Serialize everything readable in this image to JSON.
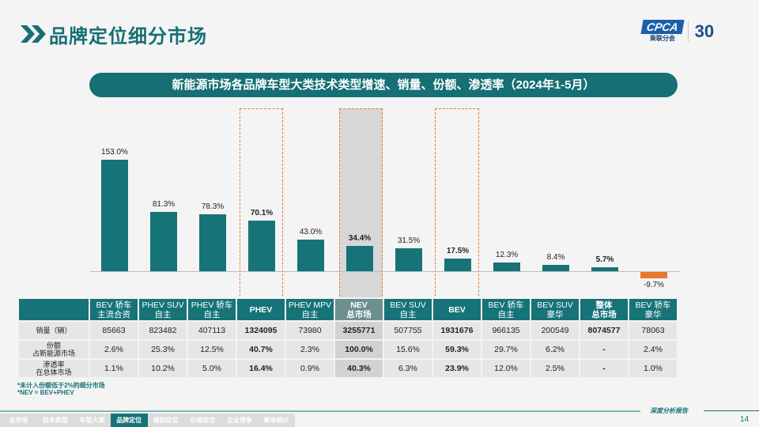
{
  "header": {
    "title": "品牌定位细分市场",
    "logo_text": "CPCA",
    "logo_sub": "乘联分会",
    "anniversary": "30"
  },
  "banner": "新能源市场各品牌车型大类技术类型增速、销量、份额、渗透率（2024年1-5月）",
  "chart_data": {
    "type": "bar",
    "title": "新能源市场各品牌车型大类技术类型增速",
    "categories": [
      "BEV 轿车 主流合资",
      "PHEV SUV 自主",
      "PHEV 轿车 自主",
      "PHEV",
      "PHEV MPV 自主",
      "NEV 总市场",
      "BEV SUV 自主",
      "BEV",
      "BEV 轿车 自主",
      "BEV SUV 豪华",
      "整体 总市场",
      "BEV 轿车 豪华"
    ],
    "values": [
      153.0,
      81.3,
      78.3,
      70.1,
      43.0,
      34.4,
      31.5,
      17.5,
      12.3,
      8.4,
      5.7,
      -9.7
    ],
    "labels": [
      "153.0%",
      "81.3%",
      "78.3%",
      "70.1%",
      "43.0%",
      "34.4%",
      "31.5%",
      "17.5%",
      "12.3%",
      "8.4%",
      "5.7%",
      "-9.7%"
    ],
    "bold": [
      false,
      false,
      false,
      true,
      false,
      true,
      false,
      true,
      false,
      false,
      true,
      false
    ],
    "colors": {
      "positive": "#167377",
      "negative": "#e8782c"
    },
    "ylim": [
      -15,
      160
    ]
  },
  "table": {
    "headers": [
      [
        "BEV 轿车",
        "主流合资"
      ],
      [
        "PHEV SUV",
        "自主"
      ],
      [
        "PHEV 轿车",
        "自主"
      ],
      [
        "PHEV",
        ""
      ],
      [
        "PHEV MPV",
        "自主"
      ],
      [
        "NEV",
        "总市场"
      ],
      [
        "BEV SUV",
        "自主"
      ],
      [
        "BEV",
        ""
      ],
      [
        "BEV 轿车",
        "自主"
      ],
      [
        "BEV SUV",
        "豪华"
      ],
      [
        "整体",
        "总市场"
      ],
      [
        "BEV 轿车",
        "豪华"
      ]
    ],
    "rows": [
      {
        "label": [
          "销量（辆）",
          ""
        ],
        "values": [
          "85663",
          "823482",
          "407113",
          "1324095",
          "73980",
          "3255771",
          "507755",
          "1931676",
          "966135",
          "200549",
          "8074577",
          "78063"
        ]
      },
      {
        "label": [
          "份额",
          "占新能源市场"
        ],
        "values": [
          "2.6%",
          "25.3%",
          "12.5%",
          "40.7%",
          "2.3%",
          "100.0%",
          "15.6%",
          "59.3%",
          "29.7%",
          "6.2%",
          "-",
          "2.4%"
        ]
      },
      {
        "label": [
          "渗透率",
          "在总体市场"
        ],
        "values": [
          "1.1%",
          "10.2%",
          "5.0%",
          "16.4%",
          "0.9%",
          "40.3%",
          "6.3%",
          "23.9%",
          "12.0%",
          "2.5%",
          "-",
          "1.0%"
        ]
      }
    ]
  },
  "notes": [
    "*未计入份额低于2%的细分市场",
    "*NEV = BEV+PHEV"
  ],
  "nav": [
    "总市场",
    "技术类型",
    "车型大类",
    "品牌定位",
    "级别定位",
    "价格定位",
    "企业竞争",
    "新车统计"
  ],
  "nav_active": 3,
  "footer": {
    "report": "深度分析报告",
    "page": "14"
  }
}
